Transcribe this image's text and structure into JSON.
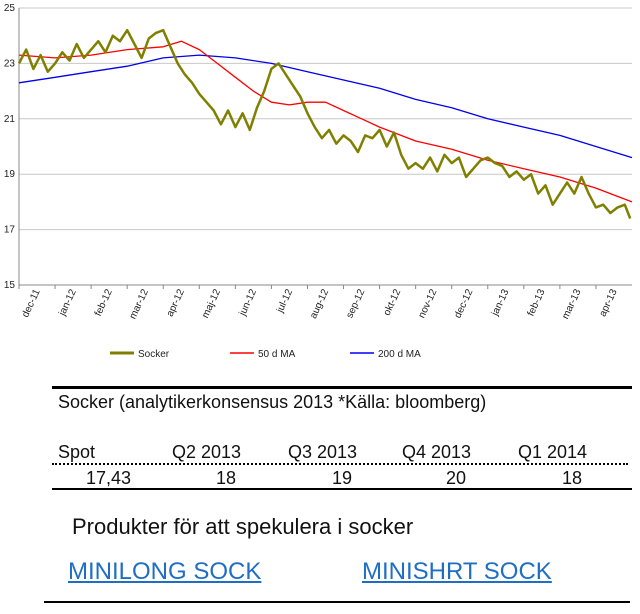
{
  "chart_data": {
    "type": "line",
    "ylim": [
      15,
      25
    ],
    "yticks": [
      "15",
      "17",
      "19",
      "21",
      "23",
      "25"
    ],
    "xlim": [
      0,
      17
    ],
    "xticks": [
      "dec-11",
      "jan-12",
      "feb-12",
      "mar-12",
      "apr-12",
      "maj-12",
      "jun-12",
      "jul-12",
      "aug-12",
      "sep-12",
      "okt-12",
      "nov-12",
      "dec-12",
      "jan-13",
      "feb-13",
      "mar-13",
      "apr-13"
    ],
    "grid": true,
    "legend_position": "bottom",
    "series": [
      {
        "name": "Socker",
        "color": "#808000",
        "x": [
          0,
          0.2,
          0.4,
          0.6,
          0.8,
          1.0,
          1.2,
          1.4,
          1.6,
          1.8,
          2.0,
          2.2,
          2.4,
          2.6,
          2.8,
          3.0,
          3.2,
          3.4,
          3.6,
          3.8,
          4.0,
          4.2,
          4.4,
          4.6,
          4.8,
          5.0,
          5.2,
          5.4,
          5.6,
          5.8,
          6.0,
          6.2,
          6.4,
          6.6,
          6.8,
          7.0,
          7.2,
          7.4,
          7.6,
          7.8,
          8.0,
          8.2,
          8.4,
          8.6,
          8.8,
          9.0,
          9.2,
          9.4,
          9.6,
          9.8,
          10.0,
          10.2,
          10.4,
          10.6,
          10.8,
          11.0,
          11.2,
          11.4,
          11.6,
          11.8,
          12.0,
          12.2,
          12.4,
          12.6,
          12.8,
          13.0,
          13.2,
          13.4,
          13.6,
          13.8,
          14.0,
          14.2,
          14.4,
          14.6,
          14.8,
          15.0,
          15.2,
          15.4,
          15.6,
          15.8,
          16.0,
          16.2,
          16.4,
          16.6,
          16.8,
          16.95
        ],
        "values": [
          23.0,
          23.5,
          22.8,
          23.3,
          22.7,
          23.0,
          23.4,
          23.1,
          23.7,
          23.2,
          23.5,
          23.8,
          23.4,
          24.0,
          23.8,
          24.2,
          23.7,
          23.2,
          23.9,
          24.1,
          24.2,
          23.6,
          23.0,
          22.6,
          22.3,
          21.9,
          21.6,
          21.3,
          20.8,
          21.3,
          20.7,
          21.2,
          20.6,
          21.4,
          22.0,
          22.8,
          23.0,
          22.6,
          22.2,
          21.8,
          21.2,
          20.7,
          20.3,
          20.6,
          20.1,
          20.4,
          20.2,
          19.8,
          20.4,
          20.3,
          20.6,
          20.0,
          20.5,
          19.7,
          19.2,
          19.4,
          19.2,
          19.6,
          19.1,
          19.7,
          19.4,
          19.6,
          18.9,
          19.2,
          19.5,
          19.6,
          19.4,
          19.3,
          18.9,
          19.1,
          18.8,
          19.0,
          18.3,
          18.6,
          17.9,
          18.3,
          18.7,
          18.3,
          18.9,
          18.3,
          17.8,
          17.9,
          17.6,
          17.8,
          17.9,
          17.4
        ]
      },
      {
        "name": "50 d MA",
        "color": "#ff0000",
        "x": [
          0,
          1,
          2,
          3,
          4,
          4.5,
          5,
          5.5,
          6,
          6.5,
          7,
          7.5,
          8,
          8.5,
          9,
          9.5,
          10,
          11,
          12,
          13,
          14,
          15,
          16,
          17
        ],
        "values": [
          23.3,
          23.2,
          23.3,
          23.5,
          23.6,
          23.8,
          23.5,
          23.0,
          22.5,
          22.0,
          21.6,
          21.5,
          21.6,
          21.6,
          21.3,
          21.0,
          20.7,
          20.2,
          19.9,
          19.5,
          19.2,
          18.9,
          18.5,
          18.0
        ]
      },
      {
        "name": "200 d MA",
        "color": "#0000ee",
        "x": [
          0,
          1,
          2,
          3,
          4,
          5,
          6,
          7,
          8,
          9,
          10,
          11,
          12,
          13,
          14,
          15,
          16,
          17
        ],
        "values": [
          22.3,
          22.5,
          22.7,
          22.9,
          23.2,
          23.3,
          23.2,
          23.0,
          22.7,
          22.4,
          22.1,
          21.7,
          21.4,
          21.0,
          20.7,
          20.4,
          20.0,
          19.6
        ]
      }
    ]
  },
  "table": {
    "title": "Socker (analytikerkonsensus 2013 *Källa: bloomberg)",
    "headers": [
      "Spot",
      "Q2 2013",
      "Q3 2013",
      "Q4 2013",
      "Q1 2014"
    ],
    "values": [
      "17,43",
      "18",
      "19",
      "20",
      "18"
    ]
  },
  "products": {
    "heading": "Produkter för att spekulera i socker",
    "links": [
      "MINILONG SOCK",
      "MINISHRT SOCK"
    ],
    "link_color": "#1f6ec6"
  }
}
